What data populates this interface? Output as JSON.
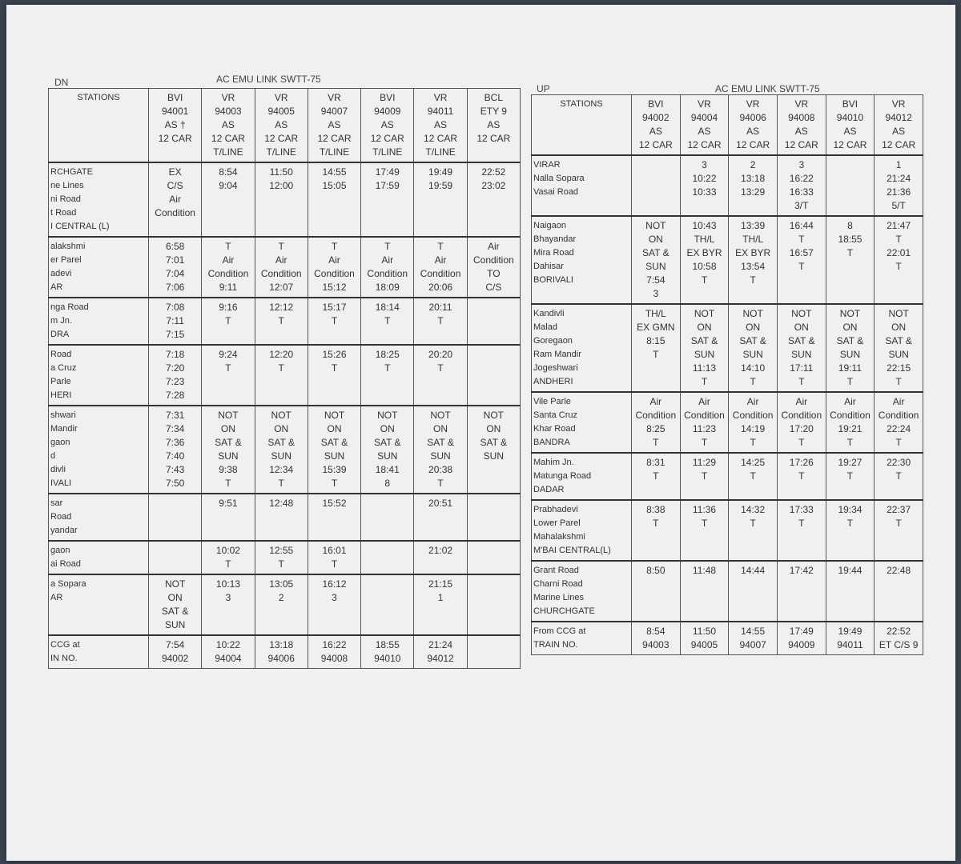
{
  "dn": {
    "label": "DN",
    "title": "AC EMU LINK SWTT-75",
    "stations_header": "STATIONS",
    "trains": [
      [
        "BVI",
        "94001",
        "AS †",
        "12 CAR"
      ],
      [
        "VR",
        "94003",
        "AS",
        "12 CAR",
        "T/LINE"
      ],
      [
        "VR",
        "94005",
        "AS",
        "12 CAR",
        "T/LINE"
      ],
      [
        "VR",
        "94007",
        "AS",
        "12 CAR",
        "T/LINE"
      ],
      [
        "BVI",
        "94009",
        "AS",
        "12 CAR",
        "T/LINE"
      ],
      [
        "VR",
        "94011",
        "AS",
        "12 CAR",
        "T/LINE"
      ],
      [
        "BCL",
        "ETY 9",
        "AS",
        "12 CAR"
      ]
    ],
    "sections": [
      {
        "stations": [
          "RCHGATE",
          "ne Lines",
          "ni Road",
          "t Road",
          "I CENTRAL (L)"
        ],
        "cells": [
          [
            "EX",
            "C/S",
            "Air",
            "Condition"
          ],
          [
            "8:54",
            "9:04"
          ],
          [
            "11:50",
            "12:00"
          ],
          [
            "14:55",
            "15:05"
          ],
          [
            "17:49",
            "17:59"
          ],
          [
            "19:49",
            "19:59"
          ],
          [
            "22:52",
            "23:02"
          ]
        ]
      },
      {
        "stations": [
          "alakshmi",
          "er Parel",
          "adevi",
          "AR"
        ],
        "cells": [
          [
            "6:58",
            "7:01",
            "7:04",
            "7:06"
          ],
          [
            "T",
            "Air",
            "Condition",
            "9:11"
          ],
          [
            "T",
            "Air",
            "Condition",
            "12:07"
          ],
          [
            "T",
            "Air",
            "Condition",
            "15:12"
          ],
          [
            "T",
            "Air",
            "Condition",
            "18:09"
          ],
          [
            "T",
            "Air",
            "Condition",
            "20:06"
          ],
          [
            "Air",
            "Condition",
            "TO",
            "C/S"
          ]
        ]
      },
      {
        "stations": [
          "nga Road",
          "m Jn.",
          "DRA"
        ],
        "cells": [
          [
            "7:08",
            "7:11",
            "7:15"
          ],
          [
            "9:16",
            "T"
          ],
          [
            "12:12",
            "T"
          ],
          [
            "15:17",
            "T"
          ],
          [
            "18:14",
            "T"
          ],
          [
            "20:11",
            "T"
          ],
          []
        ]
      },
      {
        "stations": [
          "Road",
          "a Cruz",
          "Parle",
          "HERI"
        ],
        "cells": [
          [
            "7:18",
            "7:20",
            "7:23",
            "7:28"
          ],
          [
            "9:24",
            "T"
          ],
          [
            "12:20",
            "T"
          ],
          [
            "15:26",
            "T"
          ],
          [
            "18:25",
            "T"
          ],
          [
            "20:20",
            "T"
          ],
          []
        ]
      },
      {
        "stations": [
          "shwari",
          "Mandir",
          "gaon",
          "d",
          "divli",
          "IVALI"
        ],
        "cells": [
          [
            "7:31",
            "7:34",
            "7:36",
            "7:40",
            "7:43",
            "7:50"
          ],
          [
            "NOT",
            "ON",
            "SAT &",
            "SUN",
            "9:38",
            "T"
          ],
          [
            "NOT",
            "ON",
            "SAT &",
            "SUN",
            "12:34",
            "T"
          ],
          [
            "NOT",
            "ON",
            "SAT &",
            "SUN",
            "15:39",
            "T"
          ],
          [
            "NOT",
            "ON",
            "SAT &",
            "SUN",
            "18:41",
            "8"
          ],
          [
            "NOT",
            "ON",
            "SAT &",
            "SUN",
            "20:38",
            "T"
          ],
          [
            "NOT",
            "ON",
            "SAT &",
            "SUN"
          ]
        ]
      },
      {
        "stations": [
          "sar",
          "Road",
          "yandar"
        ],
        "cells": [
          [],
          [
            "9:51"
          ],
          [
            "12:48"
          ],
          [
            "15:52"
          ],
          [],
          [
            "20:51"
          ],
          []
        ]
      },
      {
        "stations": [
          "gaon",
          "ai Road"
        ],
        "cells": [
          [],
          [
            "10:02",
            "T"
          ],
          [
            "12:55",
            "T"
          ],
          [
            "16:01",
            "T"
          ],
          [],
          [
            "21:02"
          ],
          []
        ]
      },
      {
        "stations": [
          "a Sopara",
          "AR"
        ],
        "cells": [
          [
            "NOT",
            "ON",
            "SAT &",
            "SUN"
          ],
          [
            "10:13",
            "3"
          ],
          [
            "13:05",
            "2"
          ],
          [
            "16:12",
            "3"
          ],
          [],
          [
            "21:15",
            "1"
          ],
          []
        ]
      },
      {
        "stations": [
          "CCG at",
          "IN NO."
        ],
        "cells": [
          [
            "7:54",
            "94002"
          ],
          [
            "10:22",
            "94004"
          ],
          [
            "13:18",
            "94006"
          ],
          [
            "16:22",
            "94008"
          ],
          [
            "18:55",
            "94010"
          ],
          [
            "21:24",
            "94012"
          ],
          []
        ]
      }
    ]
  },
  "up": {
    "label": "UP",
    "title": "AC EMU LINK SWTT-75",
    "stations_header": "STATIONS",
    "trains": [
      [
        "BVI",
        "94002",
        "AS",
        "12 CAR"
      ],
      [
        "VR",
        "94004",
        "AS",
        "12 CAR"
      ],
      [
        "VR",
        "94006",
        "AS",
        "12 CAR"
      ],
      [
        "VR",
        "94008",
        "AS",
        "12 CAR"
      ],
      [
        "BVI",
        "94010",
        "AS",
        "12 CAR"
      ],
      [
        "VR",
        "94012",
        "AS",
        "12 CAR"
      ]
    ],
    "sections": [
      {
        "stations": [
          "VIRAR",
          "Nalla Sopara",
          "Vasai Road"
        ],
        "cells": [
          [],
          [
            "3",
            "10:22",
            "10:33"
          ],
          [
            "2",
            "13:18",
            "13:29"
          ],
          [
            "3",
            "16:22",
            "16:33",
            "3/T"
          ],
          [],
          [
            "1",
            "21:24",
            "21:36",
            "5/T"
          ]
        ]
      },
      {
        "stations": [
          "Naigaon",
          "Bhayandar",
          "Mira Road",
          "Dahisar",
          "BORIVALI"
        ],
        "cells": [
          [
            "NOT",
            "ON",
            "SAT &",
            "SUN",
            "7:54",
            "3"
          ],
          [
            "10:43",
            "TH/L",
            "EX BYR",
            "10:58",
            "T"
          ],
          [
            "13:39",
            "TH/L",
            "EX BYR",
            "13:54",
            "T"
          ],
          [
            "16:44",
            "T",
            "16:57",
            "T"
          ],
          [
            "8",
            "18:55",
            "T"
          ],
          [
            "21:47",
            "T",
            "22:01",
            "T"
          ]
        ]
      },
      {
        "stations": [
          "Kandivli",
          "Malad",
          "Goregaon",
          "Ram Mandir",
          "Jogeshwari",
          "ANDHERI"
        ],
        "cells": [
          [
            "TH/L",
            "EX GMN",
            "8:15",
            "T"
          ],
          [
            "NOT",
            "ON",
            "SAT &",
            "SUN",
            "11:13",
            "T"
          ],
          [
            "NOT",
            "ON",
            "SAT &",
            "SUN",
            "14:10",
            "T"
          ],
          [
            "NOT",
            "ON",
            "SAT &",
            "SUN",
            "17:11",
            "T"
          ],
          [
            "NOT",
            "ON",
            "SAT &",
            "SUN",
            "19:11",
            "T"
          ],
          [
            "NOT",
            "ON",
            "SAT &",
            "SUN",
            "22:15",
            "T"
          ]
        ]
      },
      {
        "stations": [
          "Vile Parle",
          "Santa Cruz",
          "Khar Road",
          "BANDRA"
        ],
        "cells": [
          [
            "Air",
            "Condition",
            "8:25",
            "T"
          ],
          [
            "Air",
            "Condition",
            "11:23",
            "T"
          ],
          [
            "Air",
            "Condition",
            "14:19",
            "T"
          ],
          [
            "Air",
            "Condition",
            "17:20",
            "T"
          ],
          [
            "Air",
            "Condition",
            "19:21",
            "T"
          ],
          [
            "Air",
            "Condition",
            "22:24",
            "T"
          ]
        ]
      },
      {
        "stations": [
          "Mahim Jn.",
          "Matunga Road",
          "DADAR"
        ],
        "cells": [
          [
            "8:31",
            "T"
          ],
          [
            "11:29",
            "T"
          ],
          [
            "14:25",
            "T"
          ],
          [
            "17:26",
            "T"
          ],
          [
            "19:27",
            "T"
          ],
          [
            "22:30",
            "T"
          ]
        ]
      },
      {
        "stations": [
          "Prabhadevi",
          "Lower Parel",
          "Mahalakshmi",
          "M'BAI CENTRAL(L)"
        ],
        "cells": [
          [
            "8:38",
            "T"
          ],
          [
            "11:36",
            "T"
          ],
          [
            "14:32",
            "T"
          ],
          [
            "17:33",
            "T"
          ],
          [
            "19:34",
            "T"
          ],
          [
            "22:37",
            "T"
          ]
        ]
      },
      {
        "stations": [
          "Grant Road",
          "Charni Road",
          "Marine Lines",
          "CHURCHGATE"
        ],
        "cells": [
          [
            "8:50"
          ],
          [
            "11:48"
          ],
          [
            "14:44"
          ],
          [
            "17:42"
          ],
          [
            "19:44"
          ],
          [
            "22:48"
          ]
        ]
      },
      {
        "stations": [
          "From CCG at",
          "TRAIN NO."
        ],
        "cells": [
          [
            "8:54",
            "94003"
          ],
          [
            "11:50",
            "94005"
          ],
          [
            "14:55",
            "94007"
          ],
          [
            "17:49",
            "94009"
          ],
          [
            "19:49",
            "94011"
          ],
          [
            "22:52",
            "ET C/S 9"
          ]
        ]
      }
    ]
  }
}
